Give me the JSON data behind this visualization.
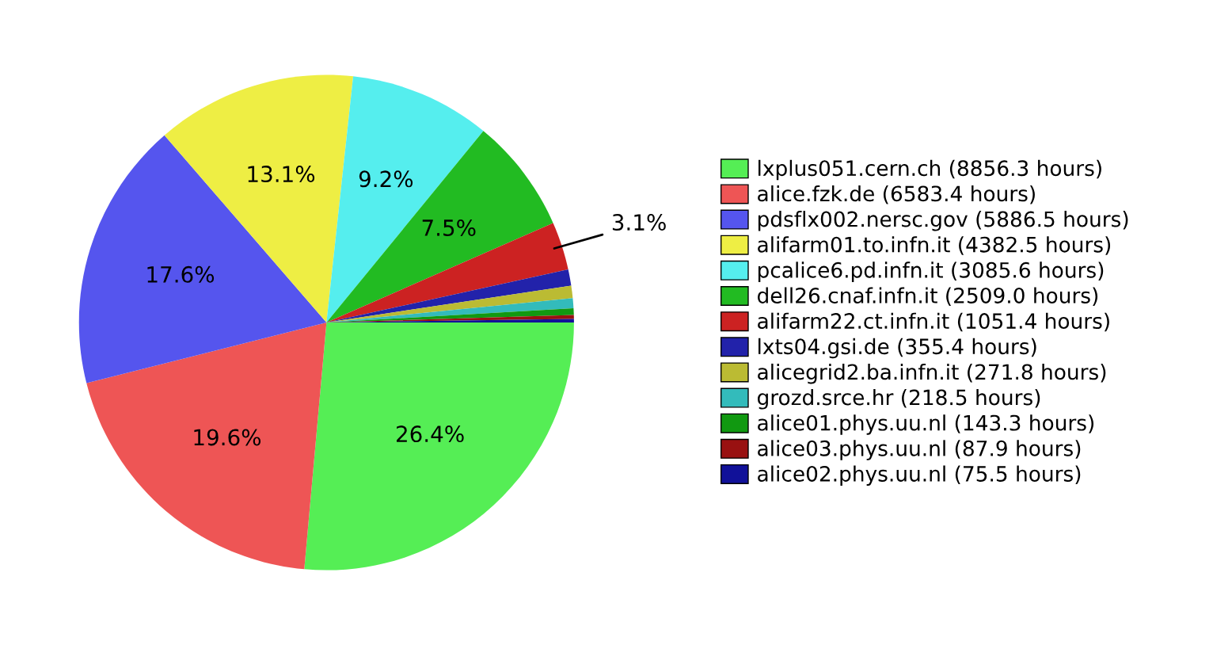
{
  "chart_data": {
    "type": "pie",
    "categories": [
      "lxplus051.cern.ch (8856.3 hours)",
      "alice.fzk.de (6583.4 hours)",
      "pdsflx002.nersc.gov (5886.5 hours)",
      "alifarm01.to.infn.it (4382.5 hours)",
      "pcalice6.pd.infn.it (3085.6 hours)",
      "dell26.cnaf.infn.it (2509.0 hours)",
      "alifarm22.ct.infn.it (1051.4 hours)",
      "lxts04.gsi.de (355.4 hours)",
      "alicegrid2.ba.infn.it (271.8 hours)",
      "grozd.srce.hr (218.5 hours)",
      "alice01.phys.uu.nl (143.3 hours)",
      "alice03.phys.uu.nl (87.9 hours)",
      "alice02.phys.uu.nl (75.5 hours)"
    ],
    "values": [
      26.43,
      19.64,
      17.57,
      13.08,
      9.21,
      7.49,
      3.14,
      1.06,
      0.81,
      0.65,
      0.43,
      0.26,
      0.23
    ],
    "colors": [
      "#55ee55",
      "#ee5555",
      "#5555ee",
      "#eeee44",
      "#55eeee",
      "#22bb22",
      "#cc2222",
      "#2222aa",
      "#bbbb33",
      "#33bbbb",
      "#119911",
      "#991111",
      "#111199"
    ],
    "value_labels": [
      "26.4%",
      "19.6%",
      "17.6%",
      "13.1%",
      "9.2%",
      "7.5%",
      "3.1%",
      null,
      null,
      null,
      null,
      null,
      null
    ],
    "legend": "right"
  }
}
